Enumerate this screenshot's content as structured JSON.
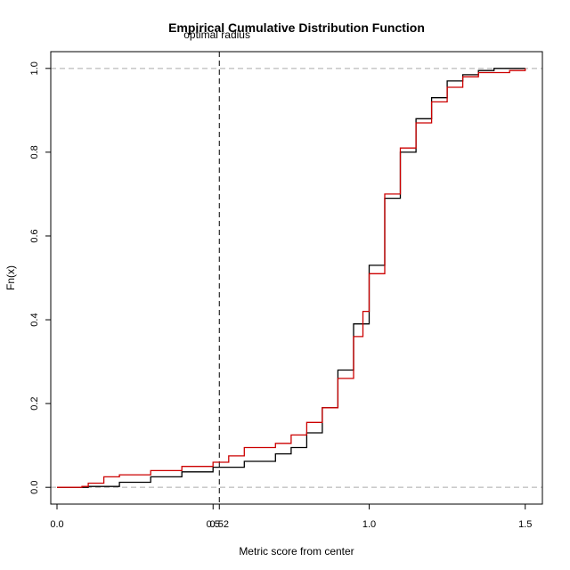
{
  "chart_data": {
    "type": "line",
    "title": "Empirical Cumulative Distribution Function",
    "xlabel": "Metric score from center",
    "ylabel": "Fn(x)",
    "xlim": [
      -0.02,
      1.555
    ],
    "ylim": [
      -0.04,
      1.04
    ],
    "x_ticks": [
      {
        "value": 0.0,
        "label": "0.0"
      },
      {
        "value": 0.5,
        "label": "0.5"
      },
      {
        "value": 0.52,
        "label": "0.52"
      },
      {
        "value": 1.0,
        "label": "1.0"
      },
      {
        "value": 1.5,
        "label": "1.5"
      }
    ],
    "y_ticks": [
      {
        "value": 0.0,
        "label": "0.0"
      },
      {
        "value": 0.2,
        "label": "0.2"
      },
      {
        "value": 0.4,
        "label": "0.4"
      },
      {
        "value": 0.6,
        "label": "0.6"
      },
      {
        "value": 0.8,
        "label": "0.8"
      },
      {
        "value": 1.0,
        "label": "1.0"
      }
    ],
    "reference_lines": [
      {
        "axis": "y",
        "value": 0.0,
        "style": "dashed",
        "color": "#aaaaaa"
      },
      {
        "axis": "y",
        "value": 1.0,
        "style": "dashed",
        "color": "#aaaaaa"
      },
      {
        "axis": "x",
        "value": 0.52,
        "style": "dashed",
        "color": "#000000",
        "label": "optimal radius"
      }
    ],
    "grid": false,
    "series": [
      {
        "color": "#000000",
        "x": [
          0.0,
          0.1,
          0.2,
          0.3,
          0.4,
          0.5,
          0.6,
          0.7,
          0.75,
          0.8,
          0.85,
          0.9,
          0.95,
          1.0,
          1.05,
          1.1,
          1.15,
          1.2,
          1.25,
          1.3,
          1.35,
          1.4,
          1.5
        ],
        "y": [
          0.0,
          0.002,
          0.012,
          0.025,
          0.037,
          0.048,
          0.062,
          0.08,
          0.095,
          0.13,
          0.19,
          0.28,
          0.39,
          0.53,
          0.69,
          0.8,
          0.88,
          0.93,
          0.97,
          0.985,
          0.995,
          1.0,
          1.0
        ]
      },
      {
        "color": "#cc0000",
        "x": [
          0.0,
          0.08,
          0.1,
          0.15,
          0.2,
          0.3,
          0.4,
          0.5,
          0.55,
          0.6,
          0.7,
          0.75,
          0.8,
          0.85,
          0.9,
          0.95,
          0.98,
          1.0,
          1.05,
          1.1,
          1.15,
          1.2,
          1.25,
          1.3,
          1.35,
          1.4,
          1.45,
          1.5
        ],
        "y": [
          0.0,
          0.002,
          0.01,
          0.025,
          0.03,
          0.04,
          0.05,
          0.06,
          0.075,
          0.095,
          0.105,
          0.125,
          0.155,
          0.19,
          0.26,
          0.36,
          0.42,
          0.51,
          0.7,
          0.81,
          0.87,
          0.92,
          0.955,
          0.98,
          0.99,
          0.99,
          0.995,
          1.0
        ]
      }
    ]
  }
}
